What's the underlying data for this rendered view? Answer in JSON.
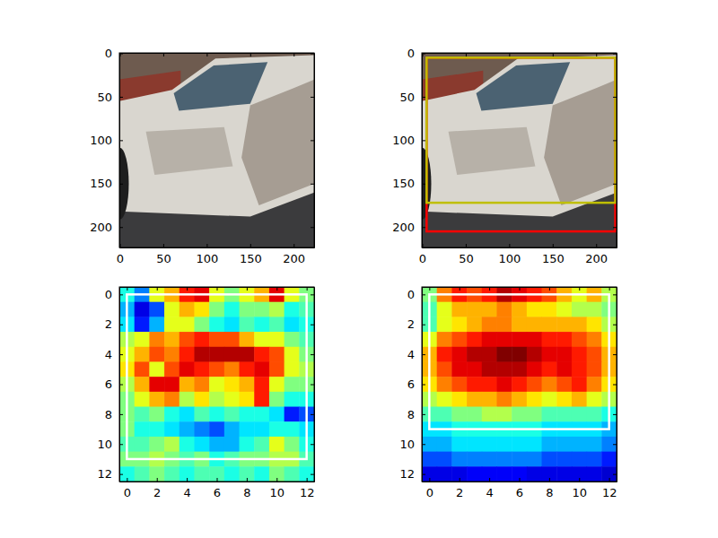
{
  "chart_data": [
    {
      "type": "image",
      "xlim": [
        -0.5,
        223.5
      ],
      "ylim": [
        223.5,
        -0.5
      ],
      "xticks": [
        0,
        50,
        100,
        150,
        200
      ],
      "yticks": [
        0,
        50,
        100,
        150,
        200
      ]
    },
    {
      "type": "image",
      "xlim": [
        -0.5,
        223.5
      ],
      "ylim": [
        223.5,
        -0.5
      ],
      "xticks": [
        0,
        50,
        100,
        150,
        200
      ],
      "yticks": [
        0,
        50,
        100,
        150,
        200
      ],
      "boxes": [
        {
          "x0": 5,
          "y0": 5,
          "x1": 222,
          "y1": 205,
          "color": "#ff0000"
        },
        {
          "x0": 5,
          "y0": 5,
          "x1": 222,
          "y1": 172,
          "color": "#bfbf00"
        }
      ]
    },
    {
      "type": "heatmap",
      "xlim": [
        -0.5,
        12.5
      ],
      "ylim": [
        12.5,
        -0.5
      ],
      "xticks": [
        0,
        2,
        4,
        6,
        8,
        10,
        12
      ],
      "yticks": [
        0,
        2,
        4,
        6,
        8,
        10,
        12
      ],
      "color_range": [
        0,
        1
      ],
      "cells": [
        [
          0.4,
          0.25,
          0.6,
          0.7,
          0.85,
          0.9,
          0.6,
          0.5,
          0.6,
          0.7,
          0.9,
          0.6,
          0.5
        ],
        [
          0.3,
          0.1,
          0.2,
          0.6,
          0.7,
          0.65,
          0.5,
          0.4,
          0.5,
          0.5,
          0.55,
          0.4,
          0.45
        ],
        [
          0.35,
          0.15,
          0.3,
          0.6,
          0.6,
          0.5,
          0.4,
          0.35,
          0.45,
          0.4,
          0.45,
          0.35,
          0.4
        ],
        [
          0.55,
          0.6,
          0.75,
          0.7,
          0.8,
          0.85,
          0.8,
          0.8,
          0.7,
          0.6,
          0.6,
          0.5,
          0.45
        ],
        [
          0.6,
          0.7,
          0.8,
          0.75,
          0.85,
          0.95,
          0.95,
          0.95,
          0.95,
          0.85,
          0.8,
          0.6,
          0.5
        ],
        [
          0.65,
          0.8,
          0.6,
          0.8,
          0.9,
          0.85,
          0.8,
          0.75,
          0.85,
          0.9,
          0.8,
          0.6,
          0.55
        ],
        [
          0.55,
          0.7,
          0.9,
          0.9,
          0.7,
          0.75,
          0.6,
          0.65,
          0.7,
          0.85,
          0.6,
          0.5,
          0.5
        ],
        [
          0.5,
          0.6,
          0.7,
          0.75,
          0.55,
          0.65,
          0.55,
          0.6,
          0.65,
          0.85,
          0.5,
          0.4,
          0.4
        ],
        [
          0.5,
          0.45,
          0.5,
          0.4,
          0.35,
          0.45,
          0.4,
          0.45,
          0.4,
          0.4,
          0.35,
          0.15,
          0.2
        ],
        [
          0.5,
          0.4,
          0.4,
          0.35,
          0.3,
          0.25,
          0.2,
          0.3,
          0.35,
          0.35,
          0.4,
          0.4,
          0.35
        ],
        [
          0.45,
          0.45,
          0.5,
          0.55,
          0.4,
          0.35,
          0.3,
          0.3,
          0.4,
          0.45,
          0.6,
          0.5,
          0.4
        ],
        [
          0.5,
          0.5,
          0.55,
          0.5,
          0.45,
          0.5,
          0.4,
          0.45,
          0.5,
          0.5,
          0.55,
          0.55,
          0.45
        ],
        [
          0.4,
          0.45,
          0.5,
          0.45,
          0.4,
          0.45,
          0.45,
          0.4,
          0.45,
          0.4,
          0.5,
          0.45,
          0.4
        ]
      ],
      "boxes": [
        {
          "x0": 0,
          "y0": 0,
          "x1": 12,
          "y1": 11,
          "color": "#ffffff"
        }
      ]
    },
    {
      "type": "heatmap",
      "xlim": [
        -0.5,
        12.5
      ],
      "ylim": [
        12.5,
        -0.5
      ],
      "xticks": [
        0,
        2,
        4,
        6,
        8,
        10,
        12
      ],
      "yticks": [
        0,
        2,
        4,
        6,
        8,
        10,
        12
      ],
      "color_range": [
        0,
        1
      ],
      "cells": [
        [
          0.5,
          0.75,
          0.85,
          0.8,
          0.85,
          0.95,
          0.9,
          0.85,
          0.8,
          0.7,
          0.6,
          0.7,
          0.55
        ],
        [
          0.45,
          0.6,
          0.7,
          0.7,
          0.7,
          0.75,
          0.7,
          0.65,
          0.65,
          0.6,
          0.55,
          0.55,
          0.5
        ],
        [
          0.45,
          0.6,
          0.65,
          0.7,
          0.75,
          0.75,
          0.7,
          0.7,
          0.7,
          0.7,
          0.7,
          0.65,
          0.55
        ],
        [
          0.6,
          0.75,
          0.8,
          0.85,
          0.9,
          0.9,
          0.9,
          0.9,
          0.85,
          0.85,
          0.8,
          0.75,
          0.65
        ],
        [
          0.7,
          0.85,
          0.9,
          0.95,
          0.95,
          1.0,
          1.0,
          0.95,
          0.9,
          0.9,
          0.85,
          0.8,
          0.7
        ],
        [
          0.7,
          0.8,
          0.9,
          0.9,
          0.95,
          0.95,
          0.95,
          0.9,
          0.85,
          0.9,
          0.85,
          0.8,
          0.7
        ],
        [
          0.65,
          0.75,
          0.8,
          0.85,
          0.85,
          0.9,
          0.85,
          0.8,
          0.75,
          0.8,
          0.85,
          0.75,
          0.65
        ],
        [
          0.55,
          0.6,
          0.65,
          0.7,
          0.7,
          0.75,
          0.7,
          0.65,
          0.6,
          0.65,
          0.7,
          0.6,
          0.55
        ],
        [
          0.45,
          0.45,
          0.5,
          0.5,
          0.55,
          0.55,
          0.5,
          0.5,
          0.45,
          0.45,
          0.45,
          0.45,
          0.4
        ],
        [
          0.35,
          0.35,
          0.4,
          0.4,
          0.4,
          0.4,
          0.4,
          0.4,
          0.35,
          0.35,
          0.35,
          0.35,
          0.3
        ],
        [
          0.3,
          0.3,
          0.35,
          0.35,
          0.35,
          0.35,
          0.35,
          0.35,
          0.3,
          0.3,
          0.3,
          0.3,
          0.25
        ],
        [
          0.2,
          0.2,
          0.25,
          0.25,
          0.25,
          0.25,
          0.25,
          0.25,
          0.2,
          0.2,
          0.2,
          0.2,
          0.15
        ],
        [
          0.1,
          0.1,
          0.1,
          0.12,
          0.12,
          0.12,
          0.12,
          0.1,
          0.1,
          0.1,
          0.1,
          0.1,
          0.08
        ]
      ],
      "boxes": [
        {
          "x0": 0,
          "y0": 0,
          "x1": 12,
          "y1": 9,
          "color": "#ffffff"
        }
      ]
    }
  ]
}
